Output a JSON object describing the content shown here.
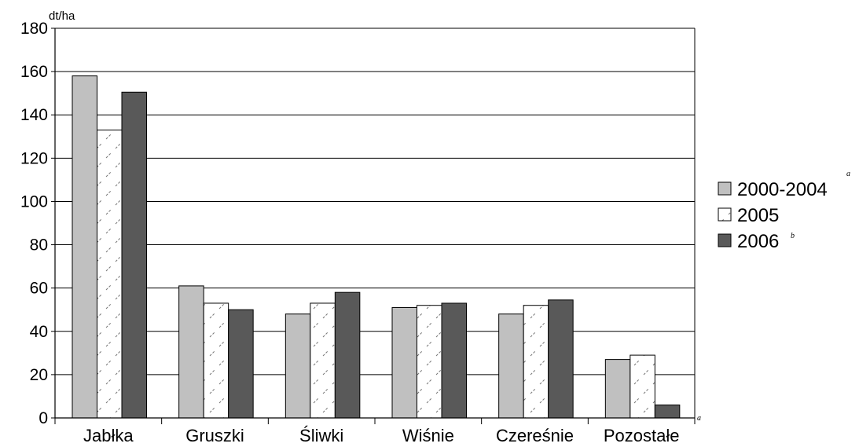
{
  "chart_data": {
    "type": "bar",
    "title": "",
    "ylabel": "dt/ha",
    "xlabel": "",
    "ylim": [
      0,
      180
    ],
    "yticks": [
      0,
      20,
      40,
      60,
      80,
      100,
      120,
      140,
      160,
      180
    ],
    "grid": true,
    "legend_position": "right",
    "categories": [
      "Jabłka",
      "Gruszki",
      "Śliwki",
      "Wiśnie",
      "Czereśnie",
      "Pozostałe"
    ],
    "series": [
      {
        "name": "2000-2004",
        "values": [
          158,
          61,
          48,
          51,
          48,
          27
        ],
        "color": "#c0c0c0",
        "pattern": "solid"
      },
      {
        "name": "2005",
        "values": [
          133,
          53,
          53,
          52,
          52,
          29
        ],
        "color": "#ffffff",
        "pattern": "diagonal-dashes"
      },
      {
        "name": "2006",
        "values": [
          150.5,
          50,
          58,
          53,
          54.5,
          6
        ],
        "color": "#595959",
        "pattern": "solid"
      }
    ],
    "legend_marks": [
      "a",
      "b"
    ],
    "annotation_mark": "a"
  }
}
